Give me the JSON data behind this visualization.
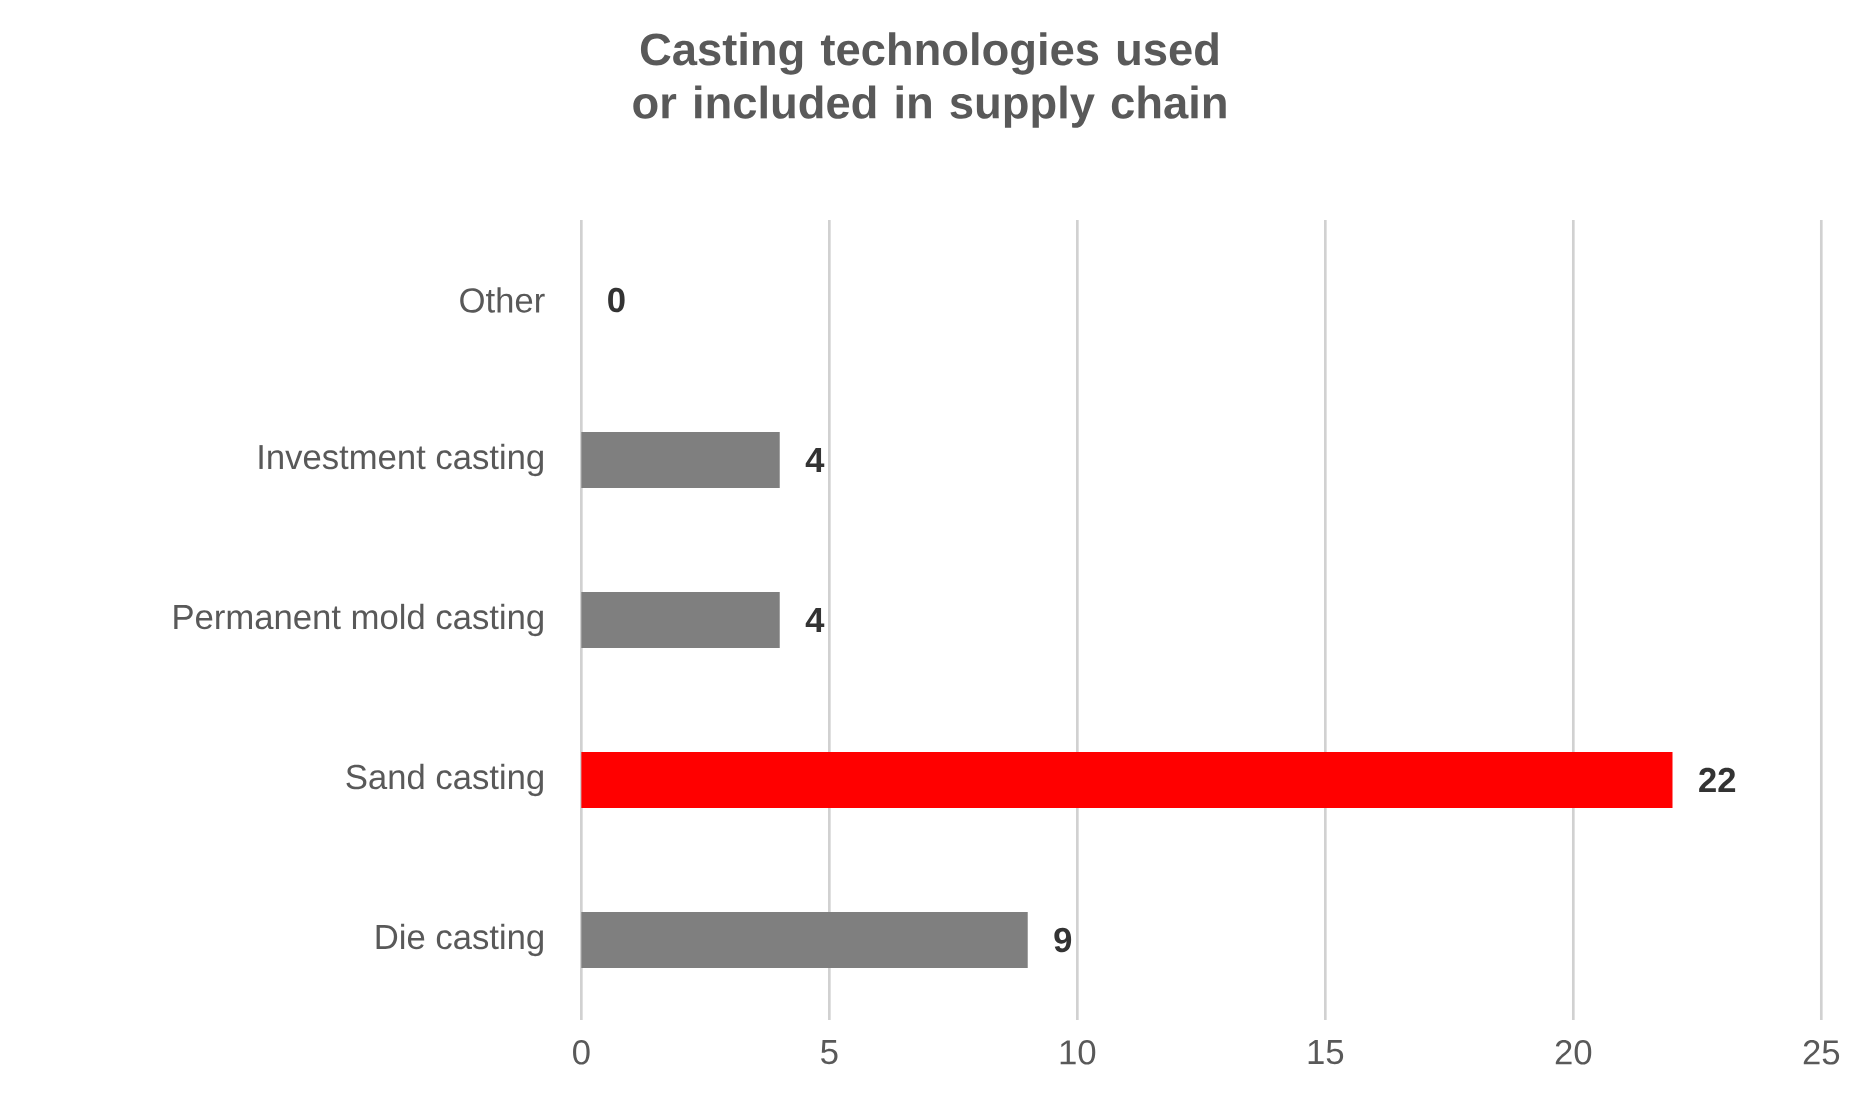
{
  "chart_data": {
    "type": "bar",
    "orientation": "horizontal",
    "title": "Casting technologies used or included in supply chain",
    "categories": [
      "Other",
      "Investment casting",
      "Permanent mold casting",
      "Sand casting",
      "Die casting"
    ],
    "values": [
      0,
      4,
      4,
      22,
      9
    ],
    "colors": [
      "#7f7f7f",
      "#7f7f7f",
      "#7f7f7f",
      "#ff0000",
      "#7f7f7f"
    ],
    "xlim": [
      0,
      25
    ],
    "xticks": [
      0,
      5,
      10,
      15,
      20,
      25
    ],
    "grid": "x",
    "data_labels": true
  }
}
